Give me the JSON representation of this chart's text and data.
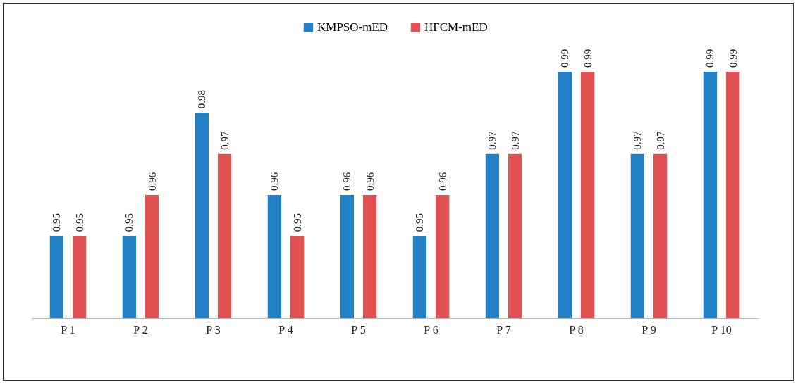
{
  "chart_data": {
    "type": "bar",
    "categories": [
      "P 1",
      "P 2",
      "P 3",
      "P 4",
      "P 5",
      "P 6",
      "P 7",
      "P 8",
      "P 9",
      "P 10"
    ],
    "series": [
      {
        "name": "KMPSO-mED",
        "color": "#2180c6",
        "values": [
          0.95,
          0.95,
          0.98,
          0.96,
          0.96,
          0.95,
          0.97,
          0.99,
          0.97,
          0.99
        ]
      },
      {
        "name": "HFCM-mED",
        "color": "#e05252",
        "values": [
          0.95,
          0.96,
          0.97,
          0.95,
          0.96,
          0.96,
          0.97,
          0.99,
          0.97,
          0.99
        ]
      }
    ],
    "ylim": [
      0.93,
      0.99
    ],
    "data_labels": true,
    "legend": "top",
    "grid": false
  }
}
